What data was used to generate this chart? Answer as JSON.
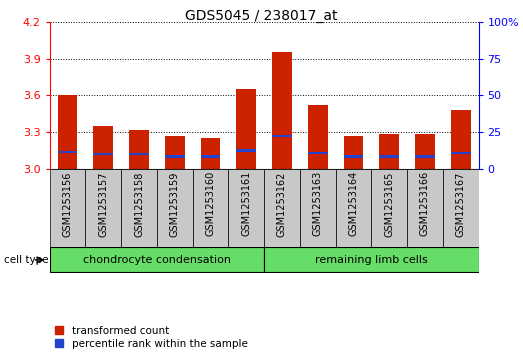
{
  "title": "GDS5045 / 238017_at",
  "samples": [
    "GSM1253156",
    "GSM1253157",
    "GSM1253158",
    "GSM1253159",
    "GSM1253160",
    "GSM1253161",
    "GSM1253162",
    "GSM1253163",
    "GSM1253164",
    "GSM1253165",
    "GSM1253166",
    "GSM1253167"
  ],
  "red_values": [
    3.6,
    3.35,
    3.32,
    3.27,
    3.25,
    3.65,
    3.95,
    3.52,
    3.27,
    3.28,
    3.28,
    3.48
  ],
  "blue_values": [
    3.14,
    3.12,
    3.12,
    3.1,
    3.1,
    3.15,
    3.27,
    3.13,
    3.1,
    3.1,
    3.1,
    3.13
  ],
  "ymin": 3.0,
  "ymax": 4.2,
  "yticks_left": [
    3.0,
    3.3,
    3.6,
    3.9,
    4.2
  ],
  "yticks_right": [
    0,
    25,
    50,
    75,
    100
  ],
  "groups": [
    {
      "label": "chondrocyte condensation",
      "start": 0,
      "end": 6
    },
    {
      "label": "remaining limb cells",
      "start": 6,
      "end": 12
    }
  ],
  "cell_type_label": "cell type",
  "legend_red": "transformed count",
  "legend_blue": "percentile rank within the sample",
  "bar_color_red": "#CC2200",
  "bar_color_blue": "#2244CC",
  "col_bg_color": "#C8C8C8",
  "group_bg_color": "#66DD66",
  "bar_width": 0.55,
  "blue_bar_height": 0.018,
  "label_fontsize": 7,
  "axis_fontsize": 8,
  "title_fontsize": 10
}
